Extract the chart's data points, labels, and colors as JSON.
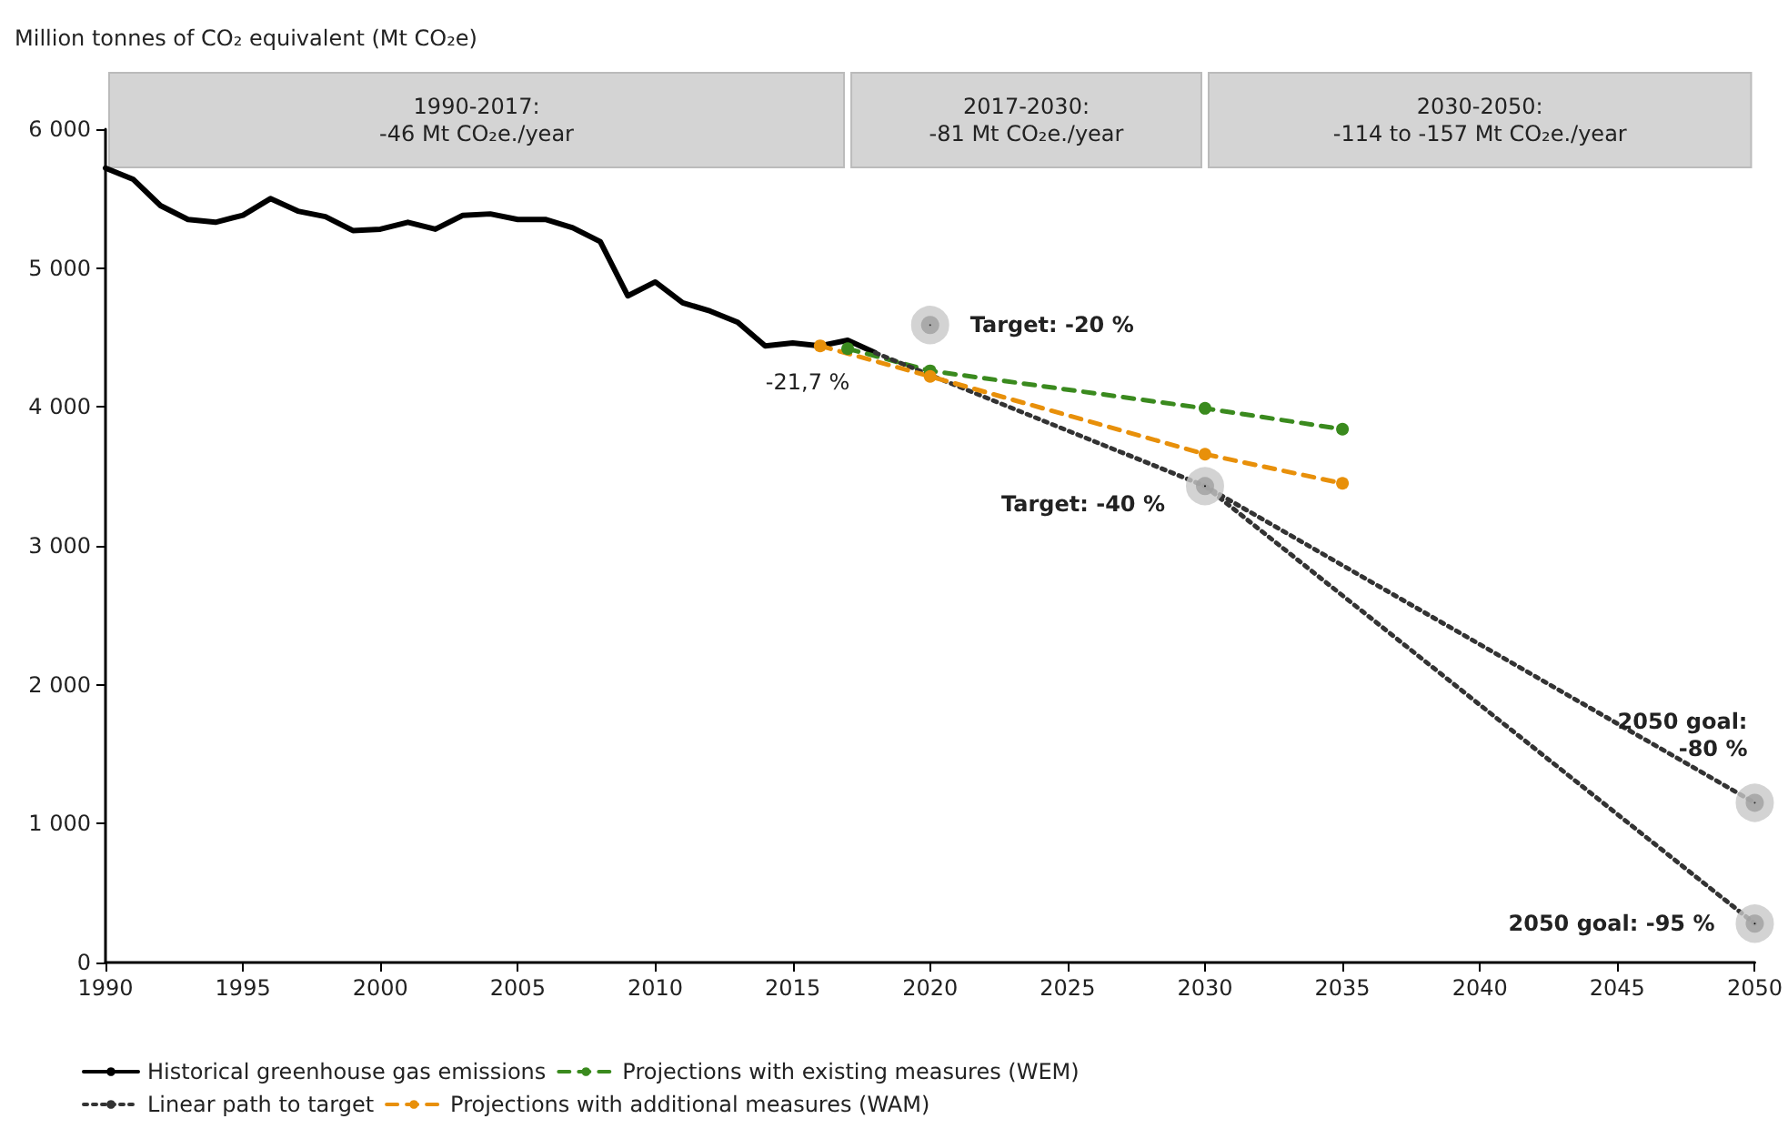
{
  "chart_data": {
    "type": "line",
    "ylabel": "Million tonnes of CO₂ equivalent (Mt CO₂e)",
    "xlim": [
      1990,
      2050
    ],
    "xticks": [
      1990,
      1995,
      2000,
      2005,
      2010,
      2015,
      2020,
      2025,
      2030,
      2035,
      2040,
      2045,
      2050
    ],
    "ylim": [
      0,
      6000
    ],
    "yticks": [
      0,
      {
        "value": 1000,
        "label": "1 000"
      },
      {
        "value": 2000,
        "label": "2 000"
      },
      {
        "value": 3000,
        "label": "3 000"
      },
      {
        "value": 4000,
        "label": "4 000"
      },
      {
        "value": 5000,
        "label": "5 000"
      },
      {
        "value": 6000,
        "label": "6 000"
      }
    ],
    "grid": false,
    "legend": "bottom",
    "series": [
      {
        "name": "Historical greenhouse gas emissions",
        "color": "#000000",
        "line_style": "solid",
        "marker": "none",
        "x": [
          1990,
          1991,
          1992,
          1993,
          1994,
          1995,
          1996,
          1997,
          1998,
          1999,
          2000,
          2001,
          2002,
          2003,
          2004,
          2005,
          2006,
          2007,
          2008,
          2009,
          2010,
          2011,
          2012,
          2013,
          2014,
          2015,
          2016,
          2017,
          2018
        ],
        "values": [
          5720,
          5640,
          5450,
          5350,
          5330,
          5380,
          5500,
          5410,
          5370,
          5270,
          5280,
          5330,
          5280,
          5380,
          5390,
          5350,
          5350,
          5290,
          5190,
          4800,
          4900,
          4750,
          4690,
          4610,
          4440,
          4460,
          4440,
          4480,
          4390
        ]
      },
      {
        "name": "Projections with existing measures (WEM)",
        "color": "#3a8a1e",
        "line_style": "dashed",
        "marker": "circle",
        "x": [
          2017,
          2020,
          2030,
          2035
        ],
        "values": [
          4420,
          4260,
          3990,
          3840
        ]
      },
      {
        "name": "Linear path to target",
        "color": "#333333",
        "line_style": "dotted",
        "marker": "none",
        "x": [
          2018,
          2030,
          2050
        ],
        "values": [
          4390,
          3430,
          1150
        ]
      },
      {
        "name": "Projections with additional measures (WAM)",
        "color": "#e8900a",
        "line_style": "dashed",
        "marker": "circle",
        "x": [
          2016,
          2020,
          2030,
          2035
        ],
        "values": [
          4440,
          4220,
          3660,
          3450
        ]
      },
      {
        "color": "#333333",
        "line_style": "dotted",
        "marker": "none",
        "x": [
          2030,
          2050
        ],
        "values": [
          3430,
          280
        ]
      },
      {
        "type": "scatter",
        "color": "#000000",
        "marker": "circle",
        "x": [
          2020,
          2030,
          2050,
          2050
        ],
        "values": [
          4590,
          3430,
          1150,
          280
        ]
      }
    ],
    "bands": [
      {
        "axis": "x",
        "from": 1990,
        "to": 2017,
        "label": "1990-2017:\n-46 Mt CO₂e./year",
        "color": "#d4d4d4"
      },
      {
        "axis": "x",
        "from": 2017,
        "to": 2030,
        "label": "2017-2030:\n-81 Mt CO₂e./year",
        "color": "#d4d4d4"
      },
      {
        "axis": "x",
        "from": 2030,
        "to": 2050,
        "label": "2030-2050:\n-114 to -157 Mt CO₂e./year",
        "color": "#d4d4d4"
      }
    ],
    "annotations": [
      {
        "text": "-21,7 %",
        "x": 2017,
        "y": 4440
      },
      {
        "text": "Target: -20 %",
        "x": 2020,
        "y": 4590
      },
      {
        "text": "Target: -40 %",
        "x": 2030,
        "y": 3430
      },
      {
        "text": "2050 goal:\n-80 %",
        "x": 2050,
        "y": 1150
      },
      {
        "text": "2050 goal: -95 %",
        "x": 2050,
        "y": 280
      }
    ]
  }
}
